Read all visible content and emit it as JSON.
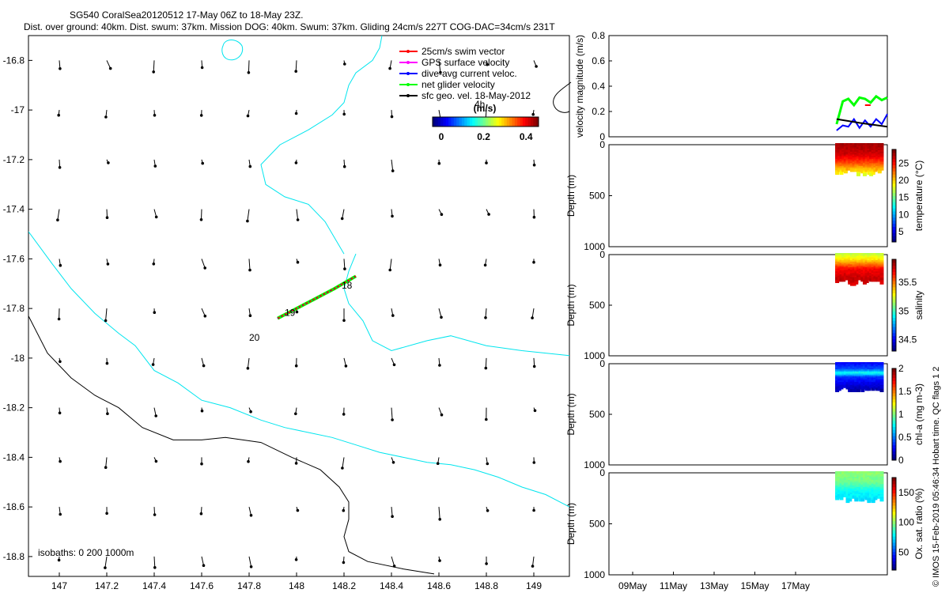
{
  "header": {
    "title_line1": "SG540 CoralSea20120512 17-May 06Z to 18-May 23Z.",
    "title_line2": "Dist. over ground: 40km. Dist. swum: 37km. Mission DOG: 40km. Swum: 37km. Gliding 24cm/s 227T COG-DAC=34cm/s 231T"
  },
  "footer_stamp": "© IMOS 15-Feb-2019 05:46:34 Hobart time. QC flags 1  2",
  "colors": {
    "coast": "#000000",
    "isobath200": "#00e5ee",
    "swim_vector": "#ff0000",
    "gps_velocity": "#ff00ff",
    "dive_avg_current": "#0000ff",
    "net_glider_velocity": "#00ff00",
    "sfc_geo_vel": "#000000"
  },
  "chart_data": [
    {
      "id": "map",
      "type": "scatter",
      "xlim": [
        146.87,
        149.15
      ],
      "ylim": [
        -18.88,
        -16.7
      ],
      "x_ticks": [
        "147",
        "147.2",
        "147.4",
        "147.6",
        "147.8",
        "148",
        "148.2",
        "148.4",
        "148.6",
        "148.8",
        "149"
      ],
      "y_ticks": [
        "-16.8",
        "-17",
        "-17.2",
        "-17.4",
        "-17.6",
        "-17.8",
        "-18",
        "-18.2",
        "-18.4",
        "-18.6",
        "-18.8"
      ],
      "legend": [
        {
          "label": "25cm/s swim vector",
          "color": "#ff0000"
        },
        {
          "label": "GPS surface velocity",
          "color": "#ff00ff"
        },
        {
          "label": "dive-avg current veloc.",
          "color": "#0000ff"
        },
        {
          "label": "net glider velocity",
          "color": "#00ff00"
        },
        {
          "label": "sfc geo. vel. 18-May-2012",
          "color": "#000000"
        }
      ],
      "legend_position": "top-right",
      "colorbar": {
        "title": "(m/s)",
        "tick_labels": [
          "0",
          "0.2",
          "0.4"
        ],
        "range": [
          0,
          0.5
        ],
        "colormap": "jet"
      },
      "annotations": [
        {
          "text": "4h",
          "x": 148.75,
          "y": -16.99
        },
        {
          "text": "18",
          "x": 148.19,
          "y": -17.72
        },
        {
          "text": "19",
          "x": 147.95,
          "y": -17.83
        },
        {
          "text": "20",
          "x": 147.8,
          "y": -17.93
        }
      ],
      "isobath_label": "isobaths: 0   200  1000m",
      "glider_track": {
        "x": [
          147.92,
          148.0,
          148.08,
          148.16,
          148.25
        ],
        "y": [
          -17.84,
          -17.8,
          -17.76,
          -17.72,
          -17.67
        ]
      },
      "coastline": {
        "x": [
          146.87,
          146.95,
          147.05,
          147.15,
          147.25,
          147.35,
          147.48,
          147.6,
          147.7,
          147.85,
          147.98,
          148.1,
          148.18,
          148.22,
          148.22,
          148.2,
          148.22,
          148.3,
          148.45,
          148.58
        ],
        "y": [
          -17.83,
          -17.98,
          -18.08,
          -18.15,
          -18.2,
          -18.28,
          -18.33,
          -18.33,
          -18.32,
          -18.34,
          -18.4,
          -18.45,
          -18.52,
          -18.58,
          -18.65,
          -18.72,
          -18.78,
          -18.82,
          -18.85,
          -18.87
        ]
      },
      "isobath_200": {
        "x": [
          146.87,
          146.97,
          147.05,
          147.15,
          147.25,
          147.32,
          147.4,
          147.5,
          147.6,
          147.72,
          147.85,
          147.95,
          148.05,
          148.15,
          148.25,
          148.35,
          148.45,
          148.55,
          148.65,
          148.75,
          148.85,
          148.95,
          149.05,
          149.15
        ],
        "y": [
          -17.49,
          -17.62,
          -17.72,
          -17.82,
          -17.9,
          -17.95,
          -18.05,
          -18.1,
          -18.17,
          -18.2,
          -18.25,
          -18.28,
          -18.3,
          -18.32,
          -18.35,
          -18.38,
          -18.4,
          -18.42,
          -18.43,
          -18.45,
          -18.48,
          -18.52,
          -18.55,
          -18.6
        ]
      },
      "isobath_200_north": {
        "x": [
          148.25,
          148.22,
          148.2,
          148.22,
          148.28,
          148.32,
          148.4,
          148.55,
          148.65,
          148.8,
          148.95,
          149.15
        ],
        "y": [
          -17.58,
          -17.65,
          -17.72,
          -17.78,
          -17.85,
          -17.93,
          -17.97,
          -17.93,
          -17.91,
          -17.95,
          -17.97,
          -17.99
        ],
        "continues_to": {
          "x": [
            148.2,
            148.12,
            148.05,
            147.95,
            147.87,
            147.85,
            147.93,
            148.05,
            148.15,
            148.2,
            148.22,
            148.25,
            148.32,
            148.35,
            148.36
          ],
          "y": [
            -17.58,
            -17.45,
            -17.38,
            -17.35,
            -17.3,
            -17.22,
            -17.14,
            -17.08,
            -17.02,
            -16.97,
            -16.9,
            -16.85,
            -16.8,
            -16.75,
            -16.7
          ]
        }
      }
    },
    {
      "id": "velocity",
      "type": "line",
      "ylabel": "velocity magnitude (m/s)",
      "ylim": [
        0,
        0.8
      ],
      "y_ticks": [
        "0",
        "0.2",
        "0.4",
        "0.6",
        "0.8"
      ],
      "series": [
        {
          "color": "#00ff00",
          "x": [
            0.818,
            0.84,
            0.86,
            0.88,
            0.9,
            0.92,
            0.94,
            0.96,
            0.98,
            1.0
          ],
          "y": [
            0.1,
            0.28,
            0.3,
            0.25,
            0.31,
            0.3,
            0.27,
            0.32,
            0.29,
            0.31
          ]
        },
        {
          "color": "#0000ff",
          "x": [
            0.818,
            0.84,
            0.86,
            0.88,
            0.9,
            0.92,
            0.94,
            0.96,
            0.98,
            1.0
          ],
          "y": [
            0.05,
            0.09,
            0.08,
            0.14,
            0.07,
            0.13,
            0.08,
            0.14,
            0.1,
            0.18
          ]
        },
        {
          "color": "#000000",
          "x": [
            0.818,
            0.9,
            1.0
          ],
          "y": [
            0.14,
            0.11,
            0.08
          ]
        },
        {
          "color": "#ff0000",
          "x": [
            0.92,
            0.94
          ],
          "y": [
            0.25,
            0.25
          ]
        }
      ]
    },
    {
      "id": "temperature",
      "type": "heatmap",
      "ylabel": "Depth (m)",
      "ylim": [
        1000,
        0
      ],
      "y_ticks": [
        "0",
        "500",
        "1000"
      ],
      "colorbar": {
        "label": "temperature (°C)",
        "tick_labels": [
          "5",
          "10",
          "15",
          "20",
          "25"
        ],
        "range": [
          2,
          29
        ]
      },
      "profile_x_range": [
        0.82,
        0.98
      ],
      "depth_range": [
        0,
        300
      ],
      "value_by_depth": [
        [
          0,
          28
        ],
        [
          100,
          27
        ],
        [
          180,
          24
        ],
        [
          240,
          21
        ],
        [
          300,
          18
        ]
      ]
    },
    {
      "id": "salinity",
      "type": "heatmap",
      "ylabel": "Depth (m)",
      "ylim": [
        1000,
        0
      ],
      "y_ticks": [
        "0",
        "500",
        "1000"
      ],
      "colorbar": {
        "label": "salinity",
        "tick_labels": [
          "34.5",
          "35",
          "35.5"
        ],
        "range": [
          34.3,
          35.9
        ]
      },
      "profile_x_range": [
        0.82,
        0.98
      ],
      "depth_range": [
        0,
        300
      ],
      "value_by_depth": [
        [
          0,
          35.2
        ],
        [
          60,
          35.35
        ],
        [
          150,
          35.7
        ],
        [
          250,
          35.8
        ],
        [
          300,
          35.75
        ]
      ]
    },
    {
      "id": "chla",
      "type": "heatmap",
      "ylabel": "Depth (m)",
      "ylim": [
        1000,
        0
      ],
      "y_ticks": [
        "0",
        "500",
        "1000"
      ],
      "colorbar": {
        "label": "chl-a (mg m-3)",
        "tick_labels": [
          "0",
          "0.5",
          "1",
          "1.5",
          "2"
        ],
        "range": [
          0,
          2
        ]
      },
      "profile_x_range": [
        0.82,
        0.98
      ],
      "depth_range": [
        0,
        280
      ],
      "value_by_depth": [
        [
          0,
          0.25
        ],
        [
          60,
          0.4
        ],
        [
          100,
          0.8
        ],
        [
          140,
          0.35
        ],
        [
          280,
          0.05
        ]
      ]
    },
    {
      "id": "oxygen",
      "type": "heatmap",
      "ylabel": "Depth (m)",
      "ylim": [
        1000,
        0
      ],
      "y_ticks": [
        "0",
        "500",
        "1000"
      ],
      "colorbar": {
        "label": "Ox. sat. ratio (%)",
        "tick_labels": [
          "50",
          "100",
          "150"
        ],
        "range": [
          20,
          175
        ]
      },
      "profile_x_range": [
        0.82,
        0.98
      ],
      "depth_range": [
        0,
        290
      ],
      "value_by_depth": [
        [
          0,
          100
        ],
        [
          100,
          95
        ],
        [
          180,
          80
        ],
        [
          290,
          72
        ]
      ],
      "x_tick_labels": [
        "09May",
        "11May",
        "13May",
        "15May",
        "17May"
      ]
    }
  ]
}
